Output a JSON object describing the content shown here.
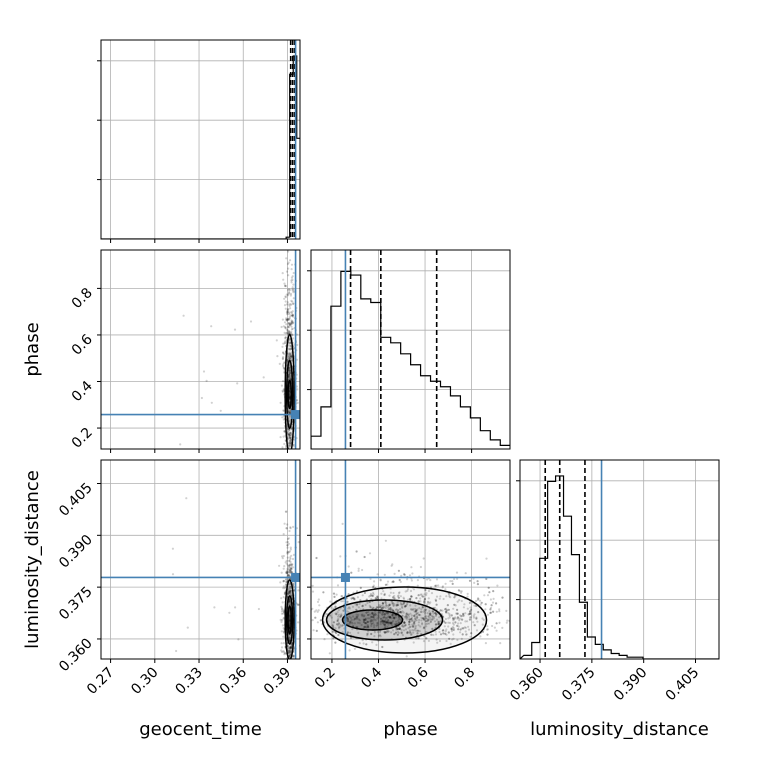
{
  "chart_data": {
    "type": "corner",
    "parameters": [
      "geocent_time",
      "phase",
      "luminosity_distance"
    ],
    "axis_labels": {
      "x": [
        "geocent_time",
        "phase",
        "luminosity_distance"
      ],
      "y": [
        "phase",
        "luminosity_distance"
      ]
    },
    "ranges": {
      "geocent_time": [
        0.2635,
        0.3985
      ],
      "phase": [
        0.11,
        0.965
      ],
      "luminosity_distance": [
        0.3542,
        0.4118
      ]
    },
    "ticks": {
      "geocent_time": [
        0.27,
        0.3,
        0.33,
        0.36,
        0.39
      ],
      "phase": [
        0.2,
        0.4,
        0.6,
        0.8
      ],
      "luminosity_distance": [
        0.36,
        0.375,
        0.39,
        0.405
      ]
    },
    "tick_labels": {
      "geocent_time": [
        "0.27",
        "0.30",
        "0.33",
        "0.36",
        "0.39"
      ],
      "phase": [
        "0.2",
        "0.4",
        "0.6",
        "0.8"
      ],
      "luminosity_distance": [
        "0.360",
        "0.375",
        "0.390",
        "0.405"
      ]
    },
    "truths": {
      "geocent_time": 0.3955,
      "phase": 0.258,
      "luminosity_distance": 0.3778
    },
    "quantiles": {
      "geocent_time": [
        0.3922,
        0.3936,
        0.395
      ],
      "phase": [
        0.28,
        0.41,
        0.65
      ],
      "luminosity_distance": [
        0.3615,
        0.3657,
        0.373
      ]
    },
    "histograms": {
      "geocent_time": {
        "edges_start": 0.3867,
        "bin_width": 0.0024,
        "counts": [
          0.0,
          0.01,
          0.9,
          1.0,
          0.55
        ]
      },
      "phase": {
        "edges_start": 0.11,
        "bin_width": 0.0428,
        "counts": [
          0.07,
          0.23,
          0.78,
          0.97,
          0.95,
          0.82,
          0.8,
          0.61,
          0.58,
          0.52,
          0.46,
          0.4,
          0.37,
          0.34,
          0.29,
          0.23,
          0.17,
          0.1,
          0.05,
          0.02
        ]
      },
      "luminosity_distance": {
        "edges_start": 0.3553,
        "bin_width": 0.0023,
        "counts": [
          0.02,
          0.09,
          0.55,
          0.97,
          1.0,
          0.78,
          0.57,
          0.31,
          0.12,
          0.08,
          0.05,
          0.03,
          0.02,
          0.01,
          0.01,
          0.0,
          0.0
        ]
      }
    },
    "contours": {
      "phase_vs_geocent_time": {
        "center": [
          0.3915,
          0.31
        ],
        "levels": [
          "39%",
          "86%",
          "99%"
        ]
      },
      "luminosity_distance_vs_geocent_time": {
        "center": [
          0.3915,
          0.3655
        ],
        "levels": [
          "39%",
          "86%",
          "99%"
        ]
      },
      "luminosity_distance_vs_phase": {
        "center": [
          0.34,
          0.3655
        ],
        "levels": [
          "39%",
          "86%",
          "99%"
        ]
      }
    },
    "colors": {
      "truth": "#4682b4",
      "hist": "#000000",
      "grid": "#b0b0b0",
      "scatter": "#000000"
    },
    "grid": true
  }
}
